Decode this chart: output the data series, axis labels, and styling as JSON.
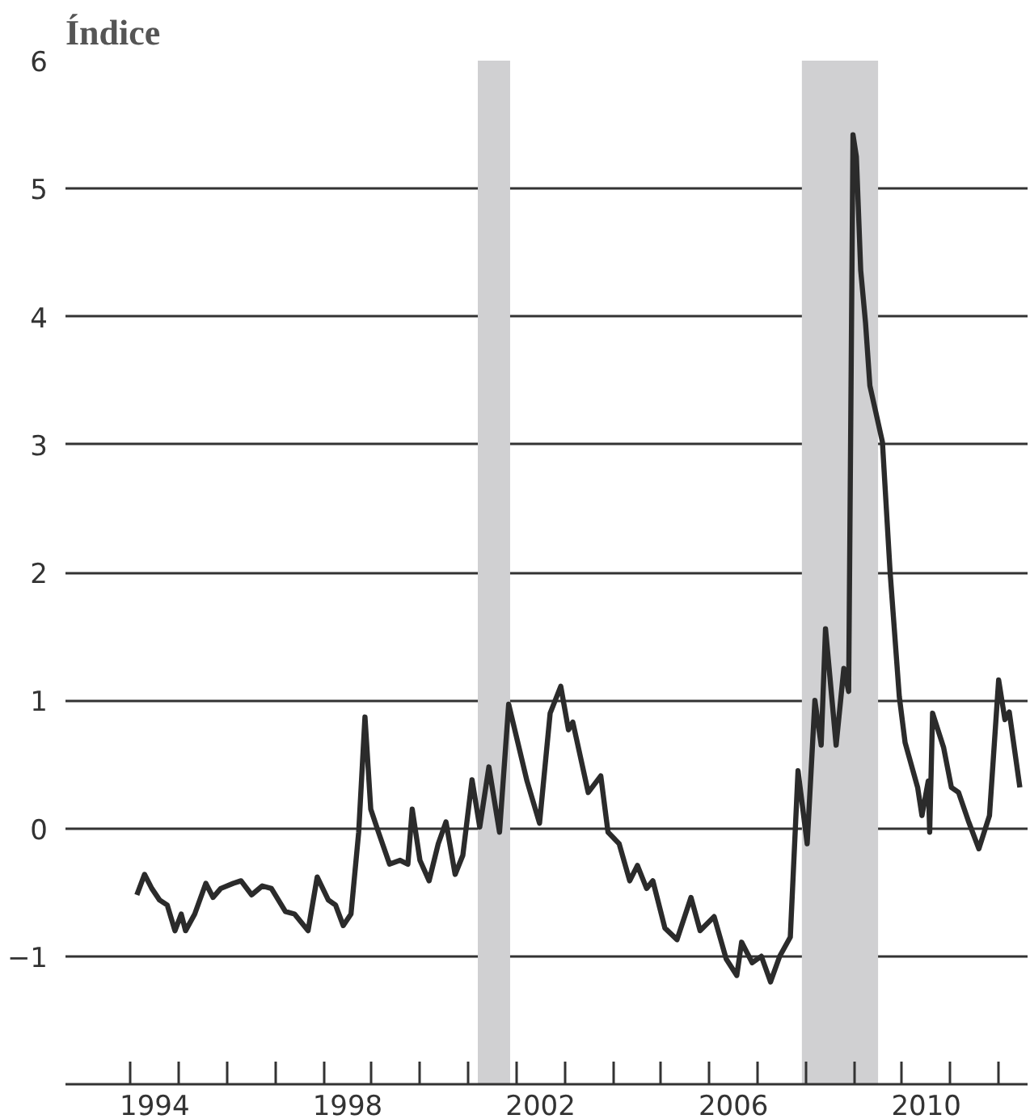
{
  "chart_data": {
    "type": "line",
    "title": "Índice",
    "x": [
      1994.13,
      1994.29,
      1994.44,
      1994.6,
      1994.76,
      1994.92,
      1995.05,
      1995.14,
      1995.33,
      1995.56,
      1995.71,
      1995.87,
      1996.13,
      1996.29,
      1996.51,
      1996.73,
      1996.92,
      1997.21,
      1997.4,
      1997.68,
      1997.87,
      1998.1,
      1998.25,
      1998.41,
      1998.57,
      1998.73,
      1998.86,
      1998.98,
      1999.14,
      1999.37,
      1999.59,
      1999.75,
      1999.84,
      2000.0,
      2000.19,
      2000.38,
      2000.54,
      2000.73,
      2000.89,
      2001.08,
      2001.24,
      2001.43,
      2001.65,
      2001.84,
      2002.22,
      2002.48,
      2002.7,
      2002.92,
      2003.08,
      2003.17,
      2003.49,
      2003.75,
      2003.9,
      2004.13,
      2004.35,
      2004.51,
      2004.7,
      2004.83,
      2005.08,
      2005.33,
      2005.62,
      2005.81,
      2006.1,
      2006.35,
      2006.57,
      2006.67,
      2006.89,
      2007.08,
      2007.27,
      2007.46,
      2007.68,
      2007.84,
      2008.03,
      2008.19,
      2008.32,
      2008.41,
      2008.63,
      2008.79,
      2008.89,
      2008.98,
      2009.05,
      2009.14,
      2009.24,
      2009.33,
      2009.59,
      2009.75,
      2009.94,
      2010.06,
      2010.32,
      2010.41,
      2010.54,
      2010.57,
      2010.63,
      2010.86,
      2011.02,
      2011.17,
      2011.37,
      2011.59,
      2011.81,
      2012.0,
      2012.13,
      2012.22,
      2012.44
    ],
    "series": [
      {
        "color": "#2b2b2b",
        "values": [
          -0.52,
          -0.36,
          -0.47,
          -0.56,
          -0.6,
          -0.8,
          -0.67,
          -0.8,
          -0.67,
          -0.43,
          -0.54,
          -0.47,
          -0.43,
          -0.41,
          -0.52,
          -0.45,
          -0.47,
          -0.65,
          -0.67,
          -0.8,
          -0.38,
          -0.56,
          -0.6,
          -0.76,
          -0.67,
          -0.03,
          0.87,
          0.15,
          -0.03,
          -0.28,
          -0.25,
          -0.28,
          0.15,
          -0.25,
          -0.41,
          -0.12,
          0.05,
          -0.36,
          -0.21,
          0.38,
          0.01,
          0.48,
          -0.03,
          0.97,
          0.37,
          0.04,
          0.9,
          1.11,
          0.77,
          0.83,
          0.28,
          0.41,
          -0.03,
          -0.12,
          -0.41,
          -0.29,
          -0.47,
          -0.41,
          -0.78,
          -0.87,
          -0.54,
          -0.8,
          -0.69,
          -1.02,
          -1.15,
          -0.89,
          -1.05,
          -1.0,
          -1.2,
          -1.0,
          -0.85,
          0.45,
          -0.12,
          1.0,
          0.65,
          1.56,
          0.65,
          1.25,
          1.07,
          5.42,
          5.25,
          4.36,
          3.95,
          3.46,
          3.02,
          2.0,
          1.03,
          0.67,
          0.32,
          0.1,
          0.37,
          -0.03,
          0.9,
          0.63,
          0.32,
          0.28,
          0.06,
          -0.16,
          0.1,
          1.16,
          0.85,
          0.91,
          0.32
        ]
      }
    ],
    "xlim": [
      1992.65,
      2012.6
    ],
    "xticks": [
      {
        "value": 1994,
        "label": null
      },
      {
        "value": 1995,
        "label": null
      },
      {
        "value": 1996,
        "label": null
      },
      {
        "value": 1997,
        "label": null
      },
      {
        "value": 1998,
        "label": null
      },
      {
        "value": 1999,
        "label": null
      },
      {
        "value": 2000,
        "label": null
      },
      {
        "value": 2001,
        "label": null
      },
      {
        "value": 2002,
        "label": null
      },
      {
        "value": 2003,
        "label": null
      },
      {
        "value": 2004,
        "label": null
      },
      {
        "value": 2005,
        "label": null
      },
      {
        "value": 2006,
        "label": null
      },
      {
        "value": 2007,
        "label": null
      },
      {
        "value": 2008,
        "label": null
      },
      {
        "value": 2009,
        "label": null
      },
      {
        "value": 2010,
        "label": null
      },
      {
        "value": 2011,
        "label": null
      },
      {
        "value": 2012,
        "label": null
      },
      {
        "value": 1994.5,
        "label": "1994"
      },
      {
        "value": 1998.5,
        "label": "1998"
      },
      {
        "value": 2002.5,
        "label": "2002"
      },
      {
        "value": 2006.5,
        "label": "2006"
      },
      {
        "value": 2010.5,
        "label": "2010"
      }
    ],
    "ylim": [
      -2,
      6
    ],
    "yticks": [
      {
        "value": -1,
        "label": "−1"
      },
      0,
      1,
      2,
      3,
      4,
      5,
      6
    ],
    "grid": "y",
    "line_style": "solid",
    "bands": [
      {
        "axis": "x",
        "from": 2001.2,
        "to": 2001.87,
        "color": "#d0d0d2"
      },
      {
        "axis": "x",
        "from": 2007.92,
        "to": 2009.5,
        "color": "#d0d0d2"
      }
    ]
  }
}
